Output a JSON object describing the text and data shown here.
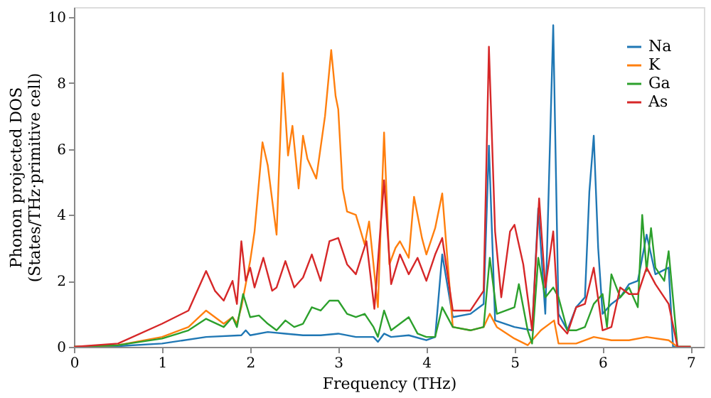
{
  "chart_data": {
    "type": "line",
    "xlabel": "Frequency (THz)",
    "ylabel": "Phonon projected DOS\n(States/THz·primitive cell)",
    "xlim": [
      0,
      7.15
    ],
    "ylim": [
      0,
      10.3
    ],
    "xticks": [
      0,
      1,
      2,
      3,
      4,
      5,
      6,
      7
    ],
    "yticks": [
      0,
      2,
      4,
      6,
      8,
      10
    ],
    "grid": false,
    "legend": "top right",
    "marker": "none",
    "line_style": "solid",
    "series": [
      {
        "name": "Na",
        "color": "#1f77b4",
        "x": [
          0,
          0.5,
          1,
          1.5,
          1.9,
          1.95,
          2.0,
          2.2,
          2.4,
          2.6,
          2.8,
          3.0,
          3.2,
          3.4,
          3.45,
          3.52,
          3.6,
          3.8,
          4.0,
          4.1,
          4.18,
          4.3,
          4.5,
          4.65,
          4.71,
          4.78,
          5.0,
          5.2,
          5.27,
          5.35,
          5.44,
          5.5,
          5.6,
          5.7,
          5.8,
          5.85,
          5.9,
          5.95,
          6.0,
          6.1,
          6.2,
          6.3,
          6.4,
          6.5,
          6.6,
          6.75,
          6.8,
          7.0
        ],
        "values": [
          0,
          0.02,
          0.1,
          0.3,
          0.35,
          0.5,
          0.35,
          0.45,
          0.4,
          0.35,
          0.35,
          0.4,
          0.3,
          0.3,
          0.15,
          0.4,
          0.3,
          0.35,
          0.2,
          0.3,
          2.8,
          0.9,
          1.0,
          1.3,
          6.1,
          0.8,
          0.6,
          0.5,
          4.2,
          1.0,
          9.75,
          1.0,
          0.5,
          1.2,
          1.5,
          4.7,
          6.4,
          3.0,
          1.0,
          1.3,
          1.5,
          1.9,
          2.0,
          3.4,
          2.2,
          2.4,
          0.0,
          0.0
        ]
      },
      {
        "name": "K",
        "color": "#ff7f0e",
        "x": [
          0,
          0.5,
          1,
          1.3,
          1.5,
          1.7,
          1.8,
          1.85,
          1.9,
          2.0,
          2.05,
          2.14,
          2.2,
          2.3,
          2.37,
          2.43,
          2.48,
          2.55,
          2.6,
          2.65,
          2.75,
          2.85,
          2.92,
          2.97,
          3.0,
          3.05,
          3.1,
          3.2,
          3.3,
          3.35,
          3.45,
          3.52,
          3.58,
          3.65,
          3.7,
          3.8,
          3.86,
          3.95,
          4.0,
          4.1,
          4.18,
          4.3,
          4.5,
          4.65,
          4.72,
          4.8,
          5.0,
          5.15,
          5.3,
          5.45,
          5.5,
          5.7,
          5.9,
          6.1,
          6.3,
          6.5,
          6.75,
          6.85,
          7.0
        ],
        "values": [
          0,
          0.05,
          0.3,
          0.6,
          1.1,
          0.7,
          0.9,
          0.7,
          1.2,
          2.6,
          3.5,
          6.2,
          5.5,
          3.4,
          8.3,
          5.8,
          6.7,
          4.8,
          6.4,
          5.7,
          5.1,
          7.0,
          9.0,
          7.6,
          7.2,
          4.8,
          4.1,
          4.0,
          3.1,
          3.8,
          1.2,
          6.5,
          2.5,
          3.0,
          3.2,
          2.7,
          4.55,
          3.3,
          2.8,
          3.6,
          4.65,
          0.6,
          0.5,
          0.6,
          1.0,
          0.6,
          0.25,
          0.05,
          0.5,
          0.8,
          0.1,
          0.1,
          0.3,
          0.2,
          0.2,
          0.3,
          0.2,
          0.0,
          0.0
        ]
      },
      {
        "name": "Ga",
        "color": "#2ca02c",
        "x": [
          0,
          0.5,
          1,
          1.3,
          1.5,
          1.7,
          1.8,
          1.85,
          1.92,
          2.0,
          2.1,
          2.2,
          2.3,
          2.4,
          2.5,
          2.6,
          2.7,
          2.8,
          2.9,
          3.0,
          3.1,
          3.2,
          3.3,
          3.4,
          3.45,
          3.52,
          3.6,
          3.7,
          3.8,
          3.9,
          4.0,
          4.1,
          4.18,
          4.3,
          4.5,
          4.65,
          4.72,
          4.8,
          5.0,
          5.05,
          5.15,
          5.2,
          5.27,
          5.35,
          5.44,
          5.5,
          5.6,
          5.7,
          5.8,
          5.9,
          6.0,
          6.05,
          6.1,
          6.2,
          6.3,
          6.4,
          6.45,
          6.5,
          6.55,
          6.6,
          6.7,
          6.75,
          6.85,
          7.0
        ],
        "values": [
          0,
          0.05,
          0.25,
          0.5,
          0.85,
          0.6,
          0.9,
          0.6,
          1.6,
          0.9,
          0.95,
          0.7,
          0.5,
          0.8,
          0.6,
          0.7,
          1.2,
          1.1,
          1.4,
          1.4,
          1.0,
          0.9,
          1.0,
          0.6,
          0.3,
          1.1,
          0.5,
          0.7,
          0.9,
          0.4,
          0.3,
          0.3,
          1.2,
          0.6,
          0.5,
          0.6,
          2.7,
          1.0,
          1.2,
          1.9,
          0.5,
          0.1,
          2.7,
          1.5,
          1.8,
          1.5,
          0.5,
          0.5,
          0.6,
          1.3,
          1.6,
          0.6,
          2.2,
          1.5,
          1.8,
          1.2,
          4.0,
          2.3,
          3.6,
          2.4,
          2.0,
          2.9,
          0.0,
          0.0
        ]
      },
      {
        "name": "As",
        "color": "#d62728",
        "x": [
          0,
          0.5,
          1,
          1.3,
          1.5,
          1.6,
          1.7,
          1.8,
          1.85,
          1.9,
          1.95,
          2.0,
          2.05,
          2.15,
          2.25,
          2.3,
          2.4,
          2.5,
          2.6,
          2.7,
          2.8,
          2.9,
          3.0,
          3.1,
          3.2,
          3.32,
          3.41,
          3.52,
          3.6,
          3.7,
          3.8,
          3.9,
          4.0,
          4.1,
          4.18,
          4.3,
          4.5,
          4.65,
          4.71,
          4.78,
          4.85,
          4.95,
          5.0,
          5.1,
          5.2,
          5.28,
          5.35,
          5.44,
          5.5,
          5.6,
          5.7,
          5.8,
          5.9,
          6.0,
          6.1,
          6.2,
          6.3,
          6.4,
          6.5,
          6.6,
          6.75,
          6.85,
          7.0
        ],
        "values": [
          0,
          0.1,
          0.7,
          1.1,
          2.3,
          1.7,
          1.4,
          2.0,
          1.3,
          3.2,
          2.0,
          2.4,
          1.8,
          2.7,
          1.7,
          1.8,
          2.6,
          1.8,
          2.1,
          2.8,
          2.0,
          3.2,
          3.3,
          2.5,
          2.2,
          3.2,
          1.15,
          5.05,
          1.9,
          2.8,
          2.2,
          2.7,
          2.0,
          2.8,
          3.3,
          1.1,
          1.1,
          1.7,
          9.1,
          3.5,
          1.5,
          3.5,
          3.7,
          2.5,
          0.5,
          4.5,
          1.8,
          3.5,
          0.7,
          0.4,
          1.2,
          1.3,
          2.4,
          0.5,
          0.6,
          1.8,
          1.6,
          1.6,
          2.4,
          1.9,
          1.3,
          0.0,
          0.0
        ]
      }
    ]
  }
}
